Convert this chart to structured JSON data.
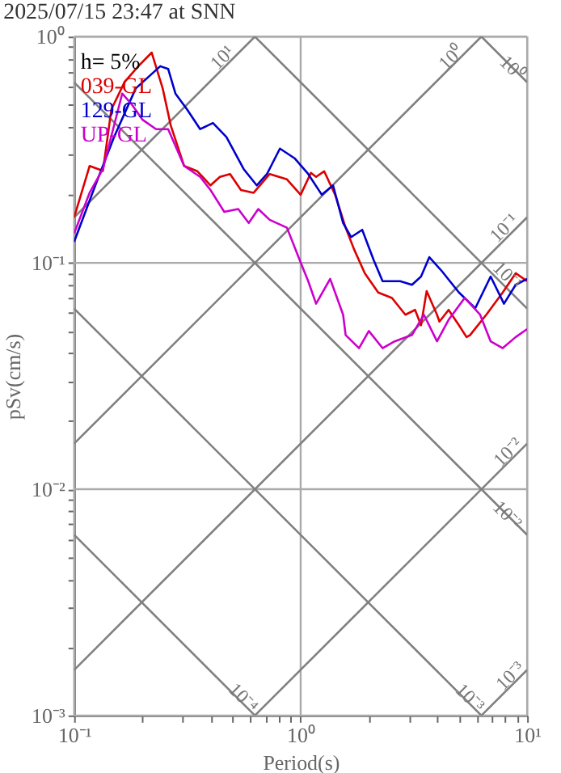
{
  "chart_data": {
    "type": "line",
    "title": "2025/07/15 23:47 at SNN",
    "xlabel": "Period(s)",
    "ylabel": "pSv(cm/s)",
    "log": "xy",
    "grid": true,
    "legend": "top left",
    "line_style": "solid",
    "marker": "none",
    "xlim": [
      0.1,
      10
    ],
    "ylim": [
      0.001,
      1
    ],
    "xticks": [
      {
        "value": 0.1,
        "label": "10⁻¹"
      },
      {
        "value": 0.2,
        "label": null
      },
      {
        "value": 0.3,
        "label": null
      },
      {
        "value": 0.4,
        "label": null
      },
      {
        "value": 0.5,
        "label": null
      },
      {
        "value": 0.6,
        "label": null
      },
      {
        "value": 0.7,
        "label": null
      },
      {
        "value": 0.8,
        "label": null
      },
      {
        "value": 0.9,
        "label": null
      },
      {
        "value": 1,
        "label": "10⁰"
      },
      {
        "value": 2,
        "label": null
      },
      {
        "value": 3,
        "label": null
      },
      {
        "value": 4,
        "label": null
      },
      {
        "value": 5,
        "label": null
      },
      {
        "value": 6,
        "label": null
      },
      {
        "value": 7,
        "label": null
      },
      {
        "value": 8,
        "label": null
      },
      {
        "value": 9,
        "label": null
      },
      {
        "value": 10,
        "label": "10¹"
      }
    ],
    "yticks": [
      {
        "value": 0.001,
        "label": "10⁻³"
      },
      {
        "value": 0.002,
        "label": null
      },
      {
        "value": 0.003,
        "label": null
      },
      {
        "value": 0.004,
        "label": null
      },
      {
        "value": 0.005,
        "label": null
      },
      {
        "value": 0.006,
        "label": null
      },
      {
        "value": 0.007,
        "label": null
      },
      {
        "value": 0.008,
        "label": null
      },
      {
        "value": 0.009,
        "label": null
      },
      {
        "value": 0.01,
        "label": "10⁻²"
      },
      {
        "value": 0.02,
        "label": null
      },
      {
        "value": 0.03,
        "label": null
      },
      {
        "value": 0.04,
        "label": null
      },
      {
        "value": 0.05,
        "label": null
      },
      {
        "value": 0.06,
        "label": null
      },
      {
        "value": 0.07,
        "label": null
      },
      {
        "value": 0.08,
        "label": null
      },
      {
        "value": 0.09,
        "label": null
      },
      {
        "value": 0.1,
        "label": "10⁻¹"
      },
      {
        "value": 0.2,
        "label": null
      },
      {
        "value": 0.3,
        "label": null
      },
      {
        "value": 0.4,
        "label": null
      },
      {
        "value": 0.5,
        "label": null
      },
      {
        "value": 0.6,
        "label": null
      },
      {
        "value": 0.7,
        "label": null
      },
      {
        "value": 0.8,
        "label": null
      },
      {
        "value": 0.9,
        "label": null
      },
      {
        "value": 1,
        "label": "10⁰"
      }
    ],
    "annotations": [
      "h= 5%",
      {
        "text": "10¹",
        "x": 0.45,
        "y": 0.81
      },
      {
        "text": "10⁰",
        "x": 4.6,
        "y": 0.81
      },
      {
        "text": "10⁻¹",
        "x": 7.9,
        "y": 0.143
      },
      {
        "text": "10⁻²",
        "x": 8.2,
        "y": 0.0146
      },
      {
        "text": "10⁻³",
        "x": 8.4,
        "y": 0.0015
      },
      {
        "text": "10⁰",
        "x": 8.6,
        "y": 0.73
      },
      {
        "text": "10⁻¹",
        "x": 8.2,
        "y": 0.088
      },
      {
        "text": "10⁻²",
        "x": 8.2,
        "y": 0.0077
      },
      {
        "text": "10⁻³",
        "x": 5.6,
        "y": 0.0012
      },
      {
        "text": "10⁻⁴",
        "x": 0.56,
        "y": 0.0012
      }
    ],
    "series": [
      {
        "type": "line",
        "color": "#808080",
        "x": [
          0.1,
          0.628
        ],
        "values": [
          0.159,
          1
        ]
      },
      {
        "type": "line",
        "color": "#808080",
        "x": [
          0.1,
          6.28
        ],
        "values": [
          0.0159,
          1
        ]
      },
      {
        "type": "line",
        "color": "#808080",
        "x": [
          0.1,
          10
        ],
        "values": [
          0.00159,
          0.159
        ]
      },
      {
        "type": "line",
        "color": "#808080",
        "x": [
          0.628,
          10
        ],
        "values": [
          0.001,
          0.0159
        ]
      },
      {
        "type": "line",
        "color": "#808080",
        "x": [
          6.28,
          10
        ],
        "values": [
          0.001,
          0.00159
        ]
      },
      {
        "type": "line",
        "color": "#808080",
        "x": [
          6.28,
          10
        ],
        "values": [
          1,
          0.628
        ]
      },
      {
        "type": "line",
        "color": "#808080",
        "x": [
          0.628,
          10
        ],
        "values": [
          1,
          0.0628
        ]
      },
      {
        "type": "line",
        "color": "#808080",
        "x": [
          0.1,
          10
        ],
        "values": [
          0.628,
          0.00628
        ]
      },
      {
        "type": "line",
        "color": "#808080",
        "x": [
          0.1,
          6.28
        ],
        "values": [
          0.0628,
          0.001
        ]
      },
      {
        "type": "line",
        "color": "#808080",
        "x": [
          0.1,
          0.628
        ],
        "values": [
          0.00628,
          0.001
        ]
      },
      {
        "name": "039-GL",
        "color": "#dd0000",
        "x": [
          0.1,
          0.117,
          0.134,
          0.146,
          0.167,
          0.192,
          0.22,
          0.246,
          0.267,
          0.306,
          0.35,
          0.4,
          0.44,
          0.488,
          0.545,
          0.62,
          0.73,
          0.87,
          1.0,
          1.11,
          1.17,
          1.27,
          1.42,
          1.58,
          1.72,
          1.92,
          2.2,
          2.53,
          2.9,
          3.2,
          3.4,
          3.6,
          4.0,
          4.1,
          4.5,
          5.0,
          5.4,
          5.6,
          6.6,
          7.8,
          8.9,
          10
        ],
        "values": [
          0.159,
          0.268,
          0.255,
          0.477,
          0.63,
          0.74,
          0.85,
          0.59,
          0.405,
          0.268,
          0.254,
          0.22,
          0.24,
          0.247,
          0.21,
          0.204,
          0.247,
          0.234,
          0.2,
          0.25,
          0.24,
          0.254,
          0.2,
          0.143,
          0.115,
          0.09,
          0.074,
          0.07,
          0.059,
          0.062,
          0.053,
          0.075,
          0.059,
          0.055,
          0.062,
          0.053,
          0.047,
          0.048,
          0.059,
          0.074,
          0.09,
          0.083
        ]
      },
      {
        "name": "129-GL",
        "color": "#0000cc",
        "x": [
          0.1,
          0.124,
          0.15,
          0.187,
          0.24,
          0.26,
          0.28,
          0.315,
          0.36,
          0.41,
          0.47,
          0.56,
          0.64,
          0.71,
          0.81,
          0.94,
          1.08,
          1.24,
          1.39,
          1.54,
          1.67,
          1.87,
          2.1,
          2.3,
          2.75,
          3.1,
          3.4,
          3.7,
          4.2,
          5.0,
          5.9,
          6.9,
          7.9,
          8.9,
          10
        ],
        "values": [
          0.124,
          0.22,
          0.36,
          0.59,
          0.74,
          0.72,
          0.56,
          0.477,
          0.39,
          0.415,
          0.36,
          0.26,
          0.22,
          0.247,
          0.32,
          0.29,
          0.247,
          0.2,
          0.22,
          0.15,
          0.13,
          0.14,
          0.103,
          0.083,
          0.083,
          0.08,
          0.087,
          0.106,
          0.092,
          0.074,
          0.063,
          0.087,
          0.066,
          0.08,
          0.085
        ]
      },
      {
        "name": "UP-GL",
        "color": "#cc00cc",
        "x": [
          0.1,
          0.117,
          0.134,
          0.163,
          0.18,
          0.2,
          0.23,
          0.26,
          0.306,
          0.36,
          0.4,
          0.46,
          0.53,
          0.59,
          0.65,
          0.73,
          0.87,
          0.99,
          1.08,
          1.17,
          1.35,
          1.54,
          1.58,
          1.81,
          2.0,
          2.3,
          2.6,
          3.1,
          3.5,
          4.0,
          4.5,
          5.3,
          6.2,
          6.9,
          7.8,
          8.9,
          10
        ],
        "values": [
          0.135,
          0.204,
          0.26,
          0.56,
          0.5,
          0.43,
          0.39,
          0.39,
          0.268,
          0.24,
          0.21,
          0.168,
          0.173,
          0.15,
          0.173,
          0.155,
          0.143,
          0.103,
          0.083,
          0.066,
          0.085,
          0.059,
          0.048,
          0.042,
          0.05,
          0.042,
          0.045,
          0.048,
          0.059,
          0.045,
          0.056,
          0.07,
          0.059,
          0.045,
          0.042,
          0.047,
          0.051
        ]
      }
    ]
  }
}
